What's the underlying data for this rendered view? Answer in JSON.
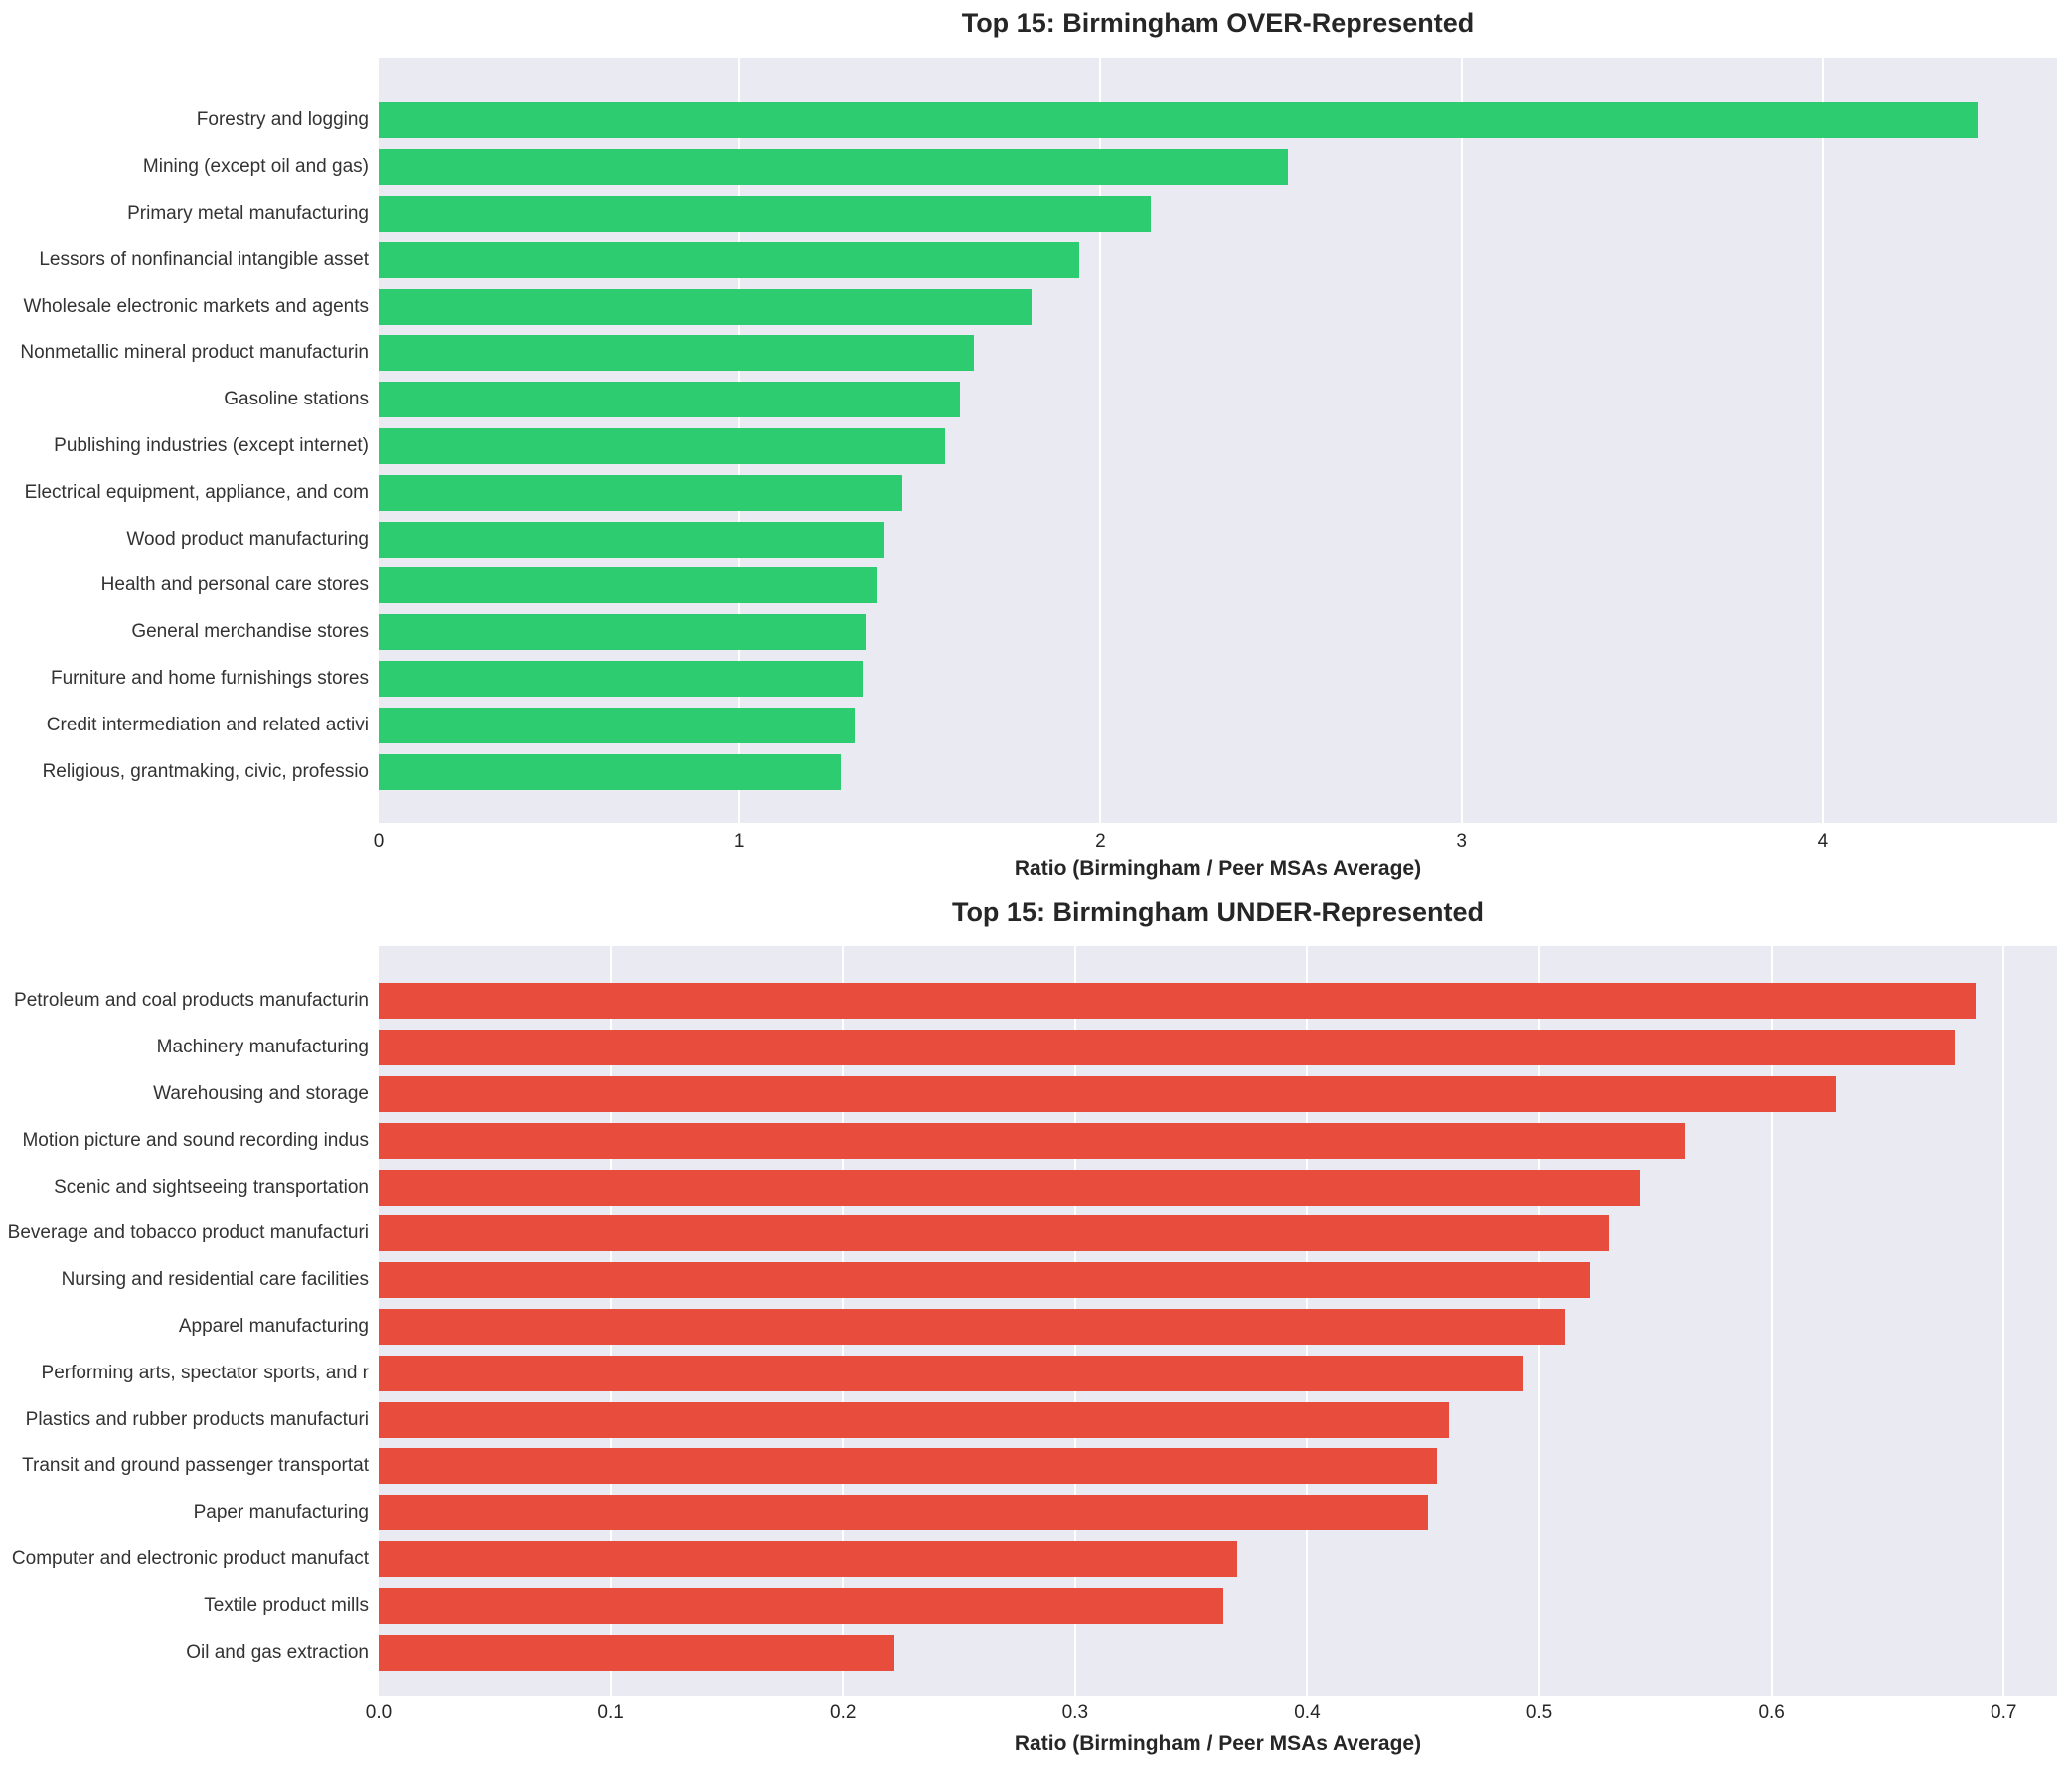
{
  "style": {
    "plot_background": "#eaeaf2",
    "grid_color": "#ffffff",
    "text_color": "#262626",
    "over_color": "#2ecc71",
    "under_color": "#e74c3c"
  },
  "chart_data": [
    {
      "type": "bar",
      "orientation": "horizontal",
      "title": "Top 15: Birmingham OVER-Represented",
      "xlabel": "Ratio (Birmingham / Peer MSAs Average)",
      "bar_color": "#2ecc71",
      "grid": true,
      "xlim": [
        0,
        4.65
      ],
      "xticks": [
        0,
        1,
        2,
        3,
        4
      ],
      "xtick_labels": [
        "0",
        "1",
        "2",
        "3",
        "4"
      ],
      "categories": [
        "Forestry and logging",
        "Mining (except oil and gas)",
        "Primary metal manufacturing",
        "Lessors of nonfinancial intangible asset",
        "Wholesale electronic markets and agents",
        "Nonmetallic mineral product manufacturin",
        "Gasoline stations",
        "Publishing industries (except internet)",
        "Electrical equipment, appliance, and com",
        "Wood product manufacturing",
        "Health and personal care stores",
        "General merchandise stores",
        "Furniture and home furnishings stores",
        "Credit intermediation and related activi",
        "Religious, grantmaking, civic, professio"
      ],
      "values": [
        4.43,
        2.52,
        2.14,
        1.94,
        1.81,
        1.65,
        1.61,
        1.57,
        1.45,
        1.4,
        1.38,
        1.35,
        1.34,
        1.32,
        1.28
      ]
    },
    {
      "type": "bar",
      "orientation": "horizontal",
      "title": "Top 15: Birmingham UNDER-Represented",
      "xlabel": "Ratio (Birmingham / Peer MSAs Average)",
      "bar_color": "#e74c3c",
      "grid": true,
      "xlim": [
        0,
        0.723
      ],
      "xticks": [
        0,
        0.1,
        0.2,
        0.3,
        0.4,
        0.5,
        0.6,
        0.7
      ],
      "xtick_labels": [
        "0.0",
        "0.1",
        "0.2",
        "0.3",
        "0.4",
        "0.5",
        "0.6",
        "0.7"
      ],
      "categories": [
        "Petroleum and coal products manufacturin",
        "Machinery manufacturing",
        "Warehousing and storage",
        "Motion picture and sound recording indus",
        "Scenic and sightseeing transportation",
        "Beverage and tobacco product manufacturi",
        "Nursing and residential care facilities",
        "Apparel manufacturing",
        "Performing arts, spectator sports, and r",
        "Plastics and rubber products manufacturi",
        "Transit and ground passenger transportat",
        "Paper manufacturing",
        "Computer and electronic product manufact",
        "Textile product mills",
        "Oil and gas extraction"
      ],
      "values": [
        0.688,
        0.679,
        0.628,
        0.563,
        0.543,
        0.53,
        0.522,
        0.511,
        0.493,
        0.461,
        0.456,
        0.452,
        0.37,
        0.364,
        0.222
      ]
    }
  ]
}
